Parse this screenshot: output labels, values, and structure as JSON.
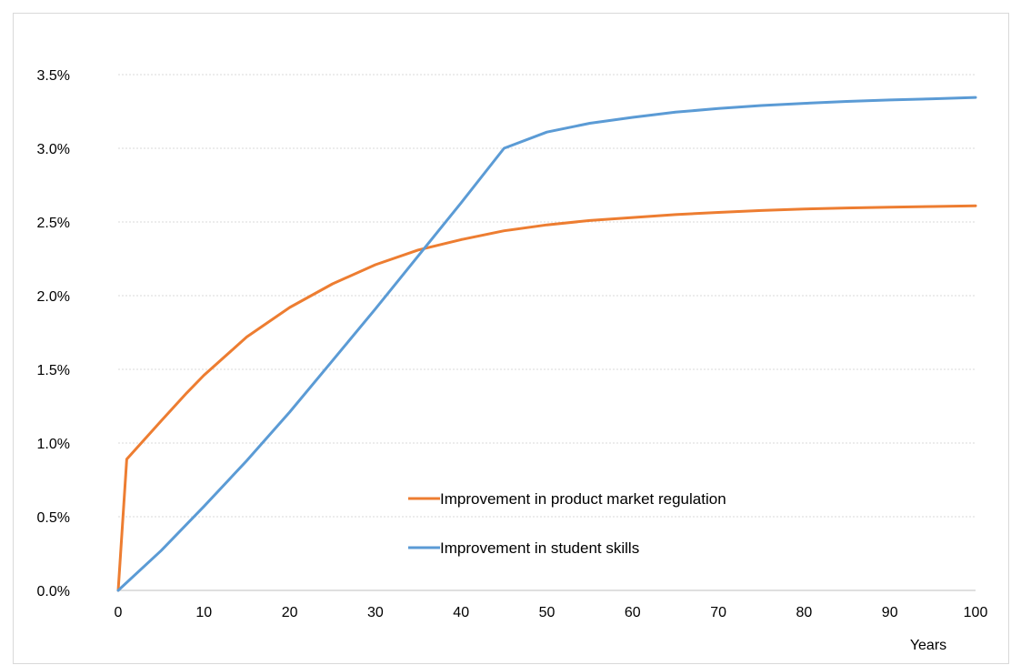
{
  "chart_data": {
    "type": "line",
    "title": "",
    "xlabel": "Years",
    "ylabel": "",
    "xlim": [
      0,
      100
    ],
    "ylim": [
      0,
      3.5
    ],
    "x_ticks": [
      "0",
      "10",
      "20",
      "30",
      "40",
      "50",
      "60",
      "70",
      "80",
      "90",
      "100"
    ],
    "x_tick_values": [
      0,
      10,
      20,
      30,
      40,
      50,
      60,
      70,
      80,
      90,
      100
    ],
    "y_ticks": [
      "0.0%",
      "0.5%",
      "1.0%",
      "1.5%",
      "2.0%",
      "2.5%",
      "3.0%",
      "3.5%"
    ],
    "y_tick_values": [
      0,
      0.5,
      1.0,
      1.5,
      2.0,
      2.5,
      3.0,
      3.5
    ],
    "grid": true,
    "legend_position": "bottom-center",
    "series": [
      {
        "name": "Improvement in product market regulation",
        "color": "#ED7D31",
        "x": [
          0,
          1,
          3,
          5,
          8,
          10,
          15,
          20,
          25,
          30,
          35,
          40,
          45,
          50,
          55,
          60,
          65,
          70,
          75,
          80,
          85,
          90,
          95,
          100
        ],
        "y": [
          0,
          0.89,
          1.02,
          1.15,
          1.34,
          1.46,
          1.72,
          1.92,
          2.08,
          2.21,
          2.31,
          2.38,
          2.44,
          2.48,
          2.51,
          2.53,
          2.55,
          2.565,
          2.578,
          2.588,
          2.595,
          2.6,
          2.605,
          2.61
        ]
      },
      {
        "name": "Improvement in student skills",
        "color": "#5B9BD5",
        "x": [
          0,
          5,
          10,
          15,
          20,
          25,
          30,
          35,
          40,
          45,
          50,
          55,
          60,
          65,
          70,
          75,
          80,
          85,
          90,
          95,
          100
        ],
        "y": [
          0,
          0.27,
          0.57,
          0.88,
          1.21,
          1.56,
          1.91,
          2.27,
          2.63,
          3.0,
          3.11,
          3.17,
          3.21,
          3.245,
          3.27,
          3.29,
          3.305,
          3.318,
          3.328,
          3.336,
          3.345
        ]
      }
    ]
  }
}
